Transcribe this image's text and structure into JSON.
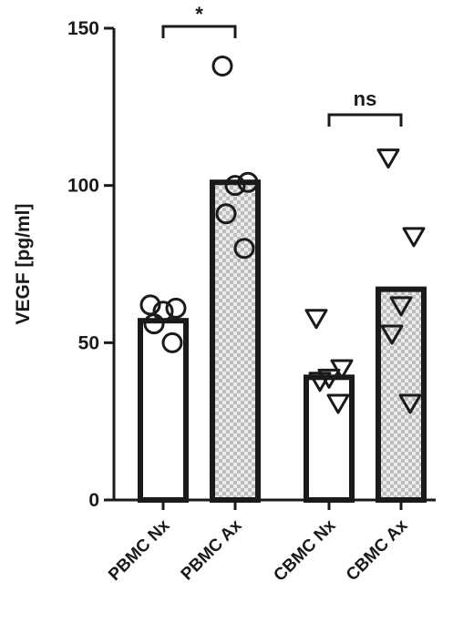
{
  "chart_data": {
    "type": "bar",
    "ylabel": "VEGF [pg/ml]",
    "xlabel": "",
    "ylim": [
      0,
      150
    ],
    "yticks": [
      0,
      50,
      100,
      150
    ],
    "grid": false,
    "categories": [
      "PBMC Nx",
      "PBMC Ax",
      "CBMC Nx",
      "CBMC Ax"
    ],
    "values": [
      57,
      101,
      39,
      67
    ],
    "bar_fill": [
      "plain",
      "checkered",
      "plain",
      "checkered"
    ],
    "marker": [
      "circle",
      "circle",
      "triangle-down",
      "triangle-down"
    ],
    "points": [
      [
        62,
        61,
        60,
        56,
        50
      ],
      [
        138,
        101,
        100,
        91,
        80
      ],
      [
        58,
        42,
        39,
        38,
        31
      ],
      [
        109,
        84,
        62,
        53,
        31
      ]
    ],
    "significance": [
      {
        "from": "PBMC Nx",
        "to": "PBMC Ax",
        "label": "*"
      },
      {
        "from": "CBMC Nx",
        "to": "CBMC Ax",
        "label": "ns"
      }
    ],
    "colors": {
      "ink": "#1a1a1a",
      "check_light": "#ebebeb",
      "check_dark": "#bdbdbd"
    }
  }
}
